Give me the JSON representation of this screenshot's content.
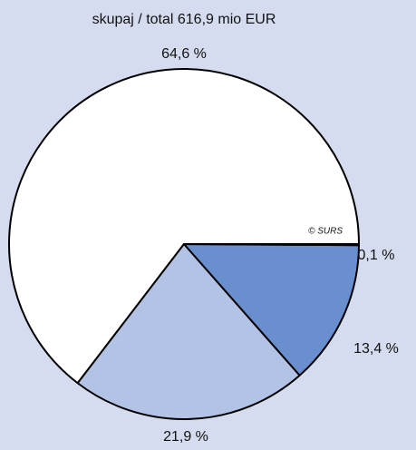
{
  "chart_data": {
    "type": "pie",
    "title": "skupaj / total 616,9 mio EUR",
    "categories": [
      null,
      null,
      null,
      null
    ],
    "values": [
      64.6,
      21.9,
      13.4,
      0.1
    ],
    "value_labels": [
      "64,6 %",
      "21,9 %",
      "13,4 %",
      "0,1 %"
    ],
    "colors": [
      "#ffffff",
      "#b3c3e6",
      "#6a8fcf",
      "#1f3a7a"
    ],
    "source": "© SURS"
  }
}
